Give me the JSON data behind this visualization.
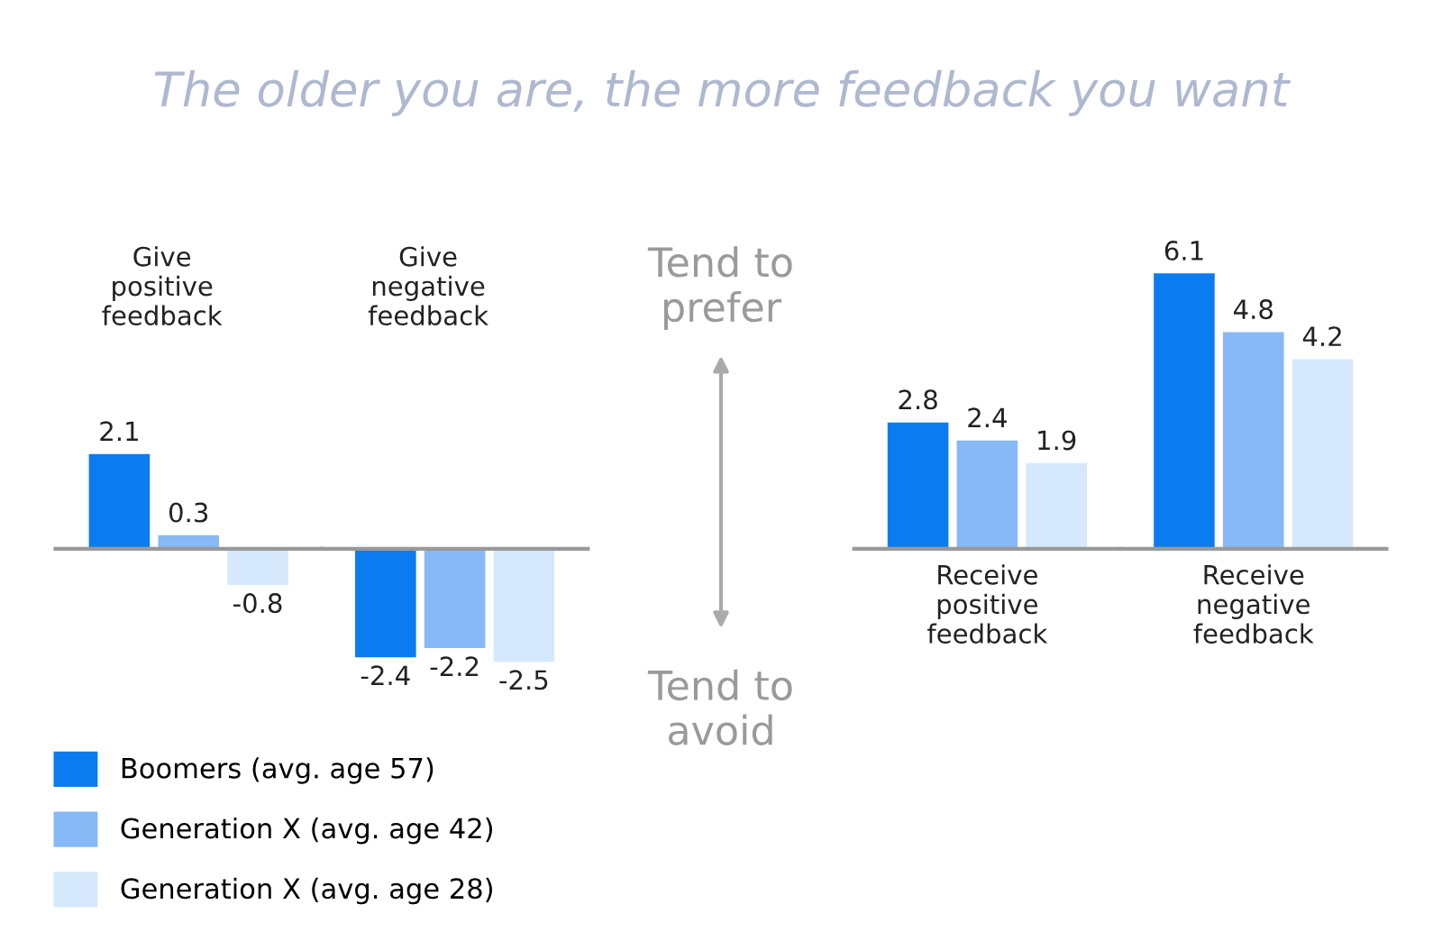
{
  "chart_data": {
    "type": "bar",
    "title": "The older you are, the more feedback you want",
    "categories": [
      "Give positive feedback",
      "Give negative feedback",
      null,
      "Receive positive feedback",
      "Receive negative feedback"
    ],
    "series": [
      {
        "name": "Boomers (avg. age 57)",
        "color": "#0a7cf0",
        "values": [
          2.1,
          -2.4,
          null,
          2.8,
          6.1
        ]
      },
      {
        "name": "Generation X (avg. age 42)",
        "color": "#86b9f5",
        "values": [
          0.3,
          -2.2,
          null,
          2.4,
          4.8
        ]
      },
      {
        "name": "Generation X (avg. age 28)",
        "color": "#d6e8fb",
        "values": [
          -0.8,
          -2.5,
          null,
          1.9,
          4.2
        ]
      }
    ],
    "annotations": [
      "Tend to prefer",
      "Tend to avoid"
    ],
    "ref_lines": [
      {
        "axis": "y",
        "value": 0,
        "color": "#999999"
      }
    ],
    "data_labels": true,
    "legend": "bottom left"
  }
}
